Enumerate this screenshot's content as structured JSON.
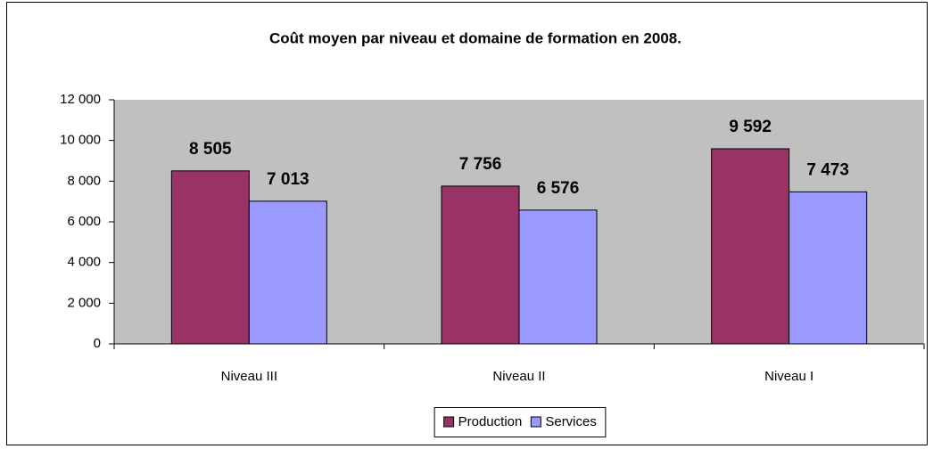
{
  "chart_data": {
    "type": "bar",
    "title": "Coût moyen par niveau et domaine de formation en 2008.",
    "categories": [
      "Niveau III",
      "Niveau II",
      "Niveau I"
    ],
    "series": [
      {
        "name": "Production",
        "color": "#993366",
        "values": [
          8505,
          7756,
          9592
        ],
        "value_labels": [
          "8 505",
          "7 756",
          "9 592"
        ]
      },
      {
        "name": "Services",
        "color": "#9999ff",
        "values": [
          7013,
          6576,
          7473
        ],
        "value_labels": [
          "7 013",
          "6 576",
          "7 473"
        ]
      }
    ],
    "ylim": [
      0,
      12000
    ],
    "yticks": [
      0,
      {
        "value": 2000,
        "label": "2 000"
      },
      {
        "value": 4000,
        "label": "4 000"
      },
      {
        "value": 6000,
        "label": "6 000"
      },
      {
        "value": 8000,
        "label": "8 000"
      },
      {
        "value": 10000,
        "label": "10 000"
      },
      {
        "value": 12000,
        "label": "12 000"
      }
    ],
    "grid": false,
    "plot_background": "#c0c0c0",
    "legend": "bottom"
  }
}
